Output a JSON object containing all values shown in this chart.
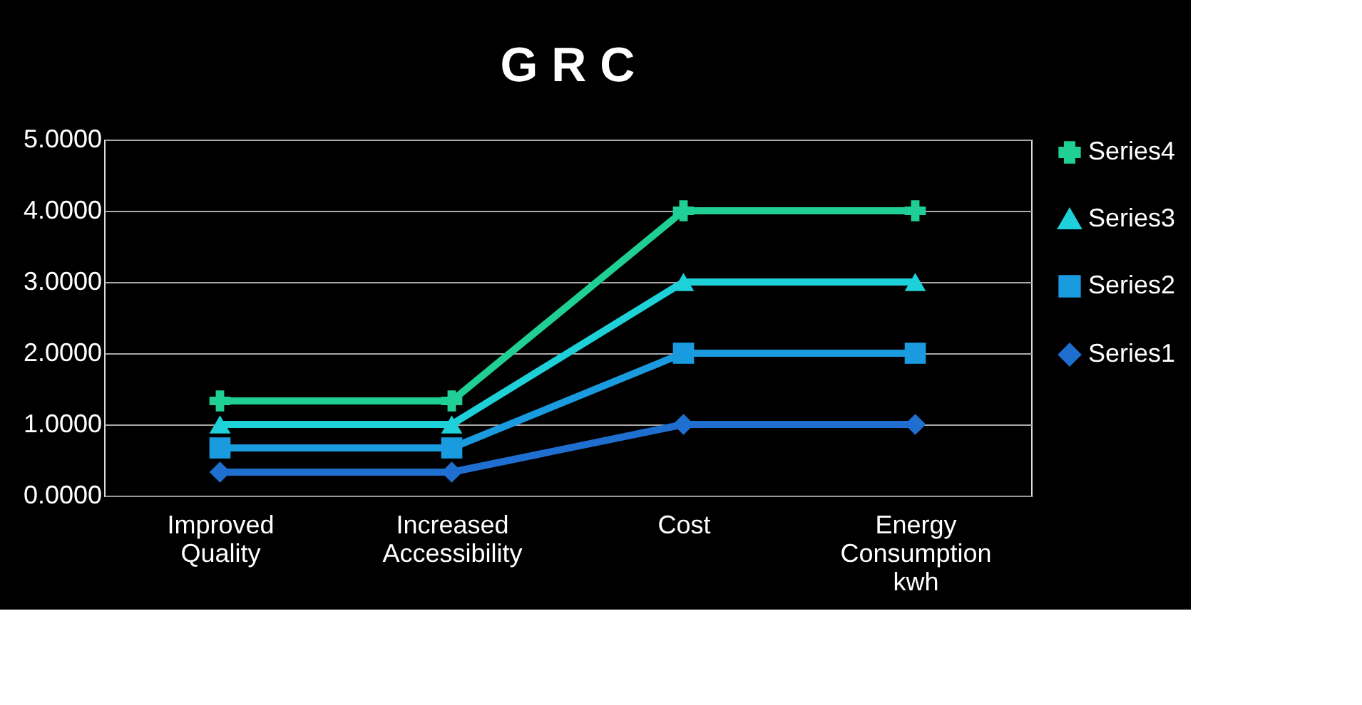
{
  "chart_data": {
    "type": "line",
    "title": "G R C",
    "categories": [
      "Improved Quality",
      "Increased Accessibility",
      "Cost",
      "Energy Consumption kwh"
    ],
    "series": [
      {
        "name": "Series1",
        "color": "#1f6fd1",
        "marker": "diamond",
        "values": [
          0.33,
          0.33,
          1.0,
          1.0
        ]
      },
      {
        "name": "Series2",
        "color": "#1a9be0",
        "marker": "square",
        "values": [
          0.67,
          0.67,
          2.0,
          2.0
        ]
      },
      {
        "name": "Series3",
        "color": "#1ed0d8",
        "marker": "triangle",
        "values": [
          1.0,
          1.0,
          3.0,
          3.0
        ]
      },
      {
        "name": "Series4",
        "color": "#1fcf95",
        "marker": "cross",
        "values": [
          1.33,
          1.33,
          4.0,
          4.0
        ]
      }
    ],
    "ylim": [
      0,
      5
    ],
    "yticks": [
      {
        "value": 0,
        "label": "0.0000"
      },
      {
        "value": 1,
        "label": "1.0000"
      },
      {
        "value": 2,
        "label": "2.0000"
      },
      {
        "value": 3,
        "label": "3.0000"
      },
      {
        "value": 4,
        "label": "4.0000"
      },
      {
        "value": 5,
        "label": "5.0000"
      }
    ],
    "grid": "y",
    "legend": "right",
    "line_style": "solid"
  }
}
